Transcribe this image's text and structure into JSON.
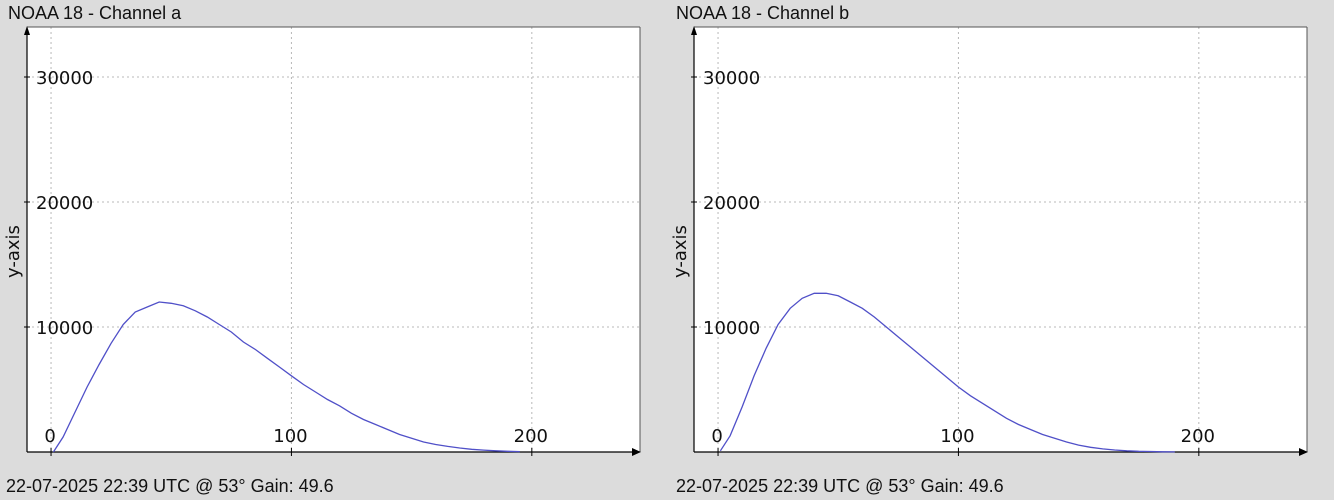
{
  "chart_data": [
    {
      "type": "line",
      "title": "NOAA 18 - Channel a",
      "footer": "22-07-2025 22:39 UTC @ 53° Gain: 49.6",
      "ylabel": "y-axis",
      "xlabel": "",
      "xlim": [
        -10,
        245
      ],
      "ylim": [
        0,
        34000
      ],
      "xticks": [
        0,
        100,
        200
      ],
      "yticks": [
        10000,
        20000,
        30000
      ],
      "grid": true,
      "series": [
        {
          "color": "#5050c8",
          "x": [
            1,
            5,
            10,
            15,
            20,
            25,
            30,
            35,
            40,
            45,
            50,
            55,
            60,
            65,
            70,
            75,
            80,
            85,
            90,
            95,
            100,
            105,
            110,
            115,
            120,
            125,
            130,
            135,
            140,
            145,
            150,
            155,
            160,
            165,
            170,
            175,
            180,
            185,
            190,
            195
          ],
          "y": [
            0,
            1200,
            3200,
            5200,
            7000,
            8700,
            10200,
            11200,
            11600,
            12000,
            11900,
            11700,
            11300,
            10800,
            10200,
            9600,
            8800,
            8200,
            7500,
            6800,
            6100,
            5400,
            4800,
            4200,
            3700,
            3100,
            2600,
            2200,
            1800,
            1400,
            1100,
            800,
            600,
            450,
            320,
            220,
            150,
            100,
            60,
            30
          ]
        }
      ]
    },
    {
      "type": "line",
      "title": "NOAA 18 - Channel b",
      "footer": "22-07-2025 22:39 UTC @ 53° Gain: 49.6",
      "ylabel": "y-axis",
      "xlabel": "",
      "xlim": [
        -10,
        245
      ],
      "ylim": [
        0,
        34000
      ],
      "xticks": [
        0,
        100,
        200
      ],
      "yticks": [
        10000,
        20000,
        30000
      ],
      "grid": true,
      "series": [
        {
          "color": "#5050c8",
          "x": [
            1,
            5,
            10,
            15,
            20,
            25,
            30,
            35,
            40,
            45,
            50,
            55,
            60,
            65,
            70,
            75,
            80,
            85,
            90,
            95,
            100,
            105,
            110,
            115,
            120,
            125,
            130,
            135,
            140,
            145,
            150,
            155,
            160,
            165,
            170,
            175,
            180,
            185,
            190
          ],
          "y": [
            100,
            1300,
            3600,
            6100,
            8300,
            10200,
            11500,
            12300,
            12700,
            12700,
            12500,
            12000,
            11500,
            10800,
            10000,
            9200,
            8400,
            7600,
            6800,
            6000,
            5200,
            4500,
            3900,
            3300,
            2700,
            2200,
            1800,
            1400,
            1100,
            800,
            550,
            380,
            250,
            160,
            100,
            60,
            40,
            20,
            10
          ]
        }
      ]
    }
  ]
}
